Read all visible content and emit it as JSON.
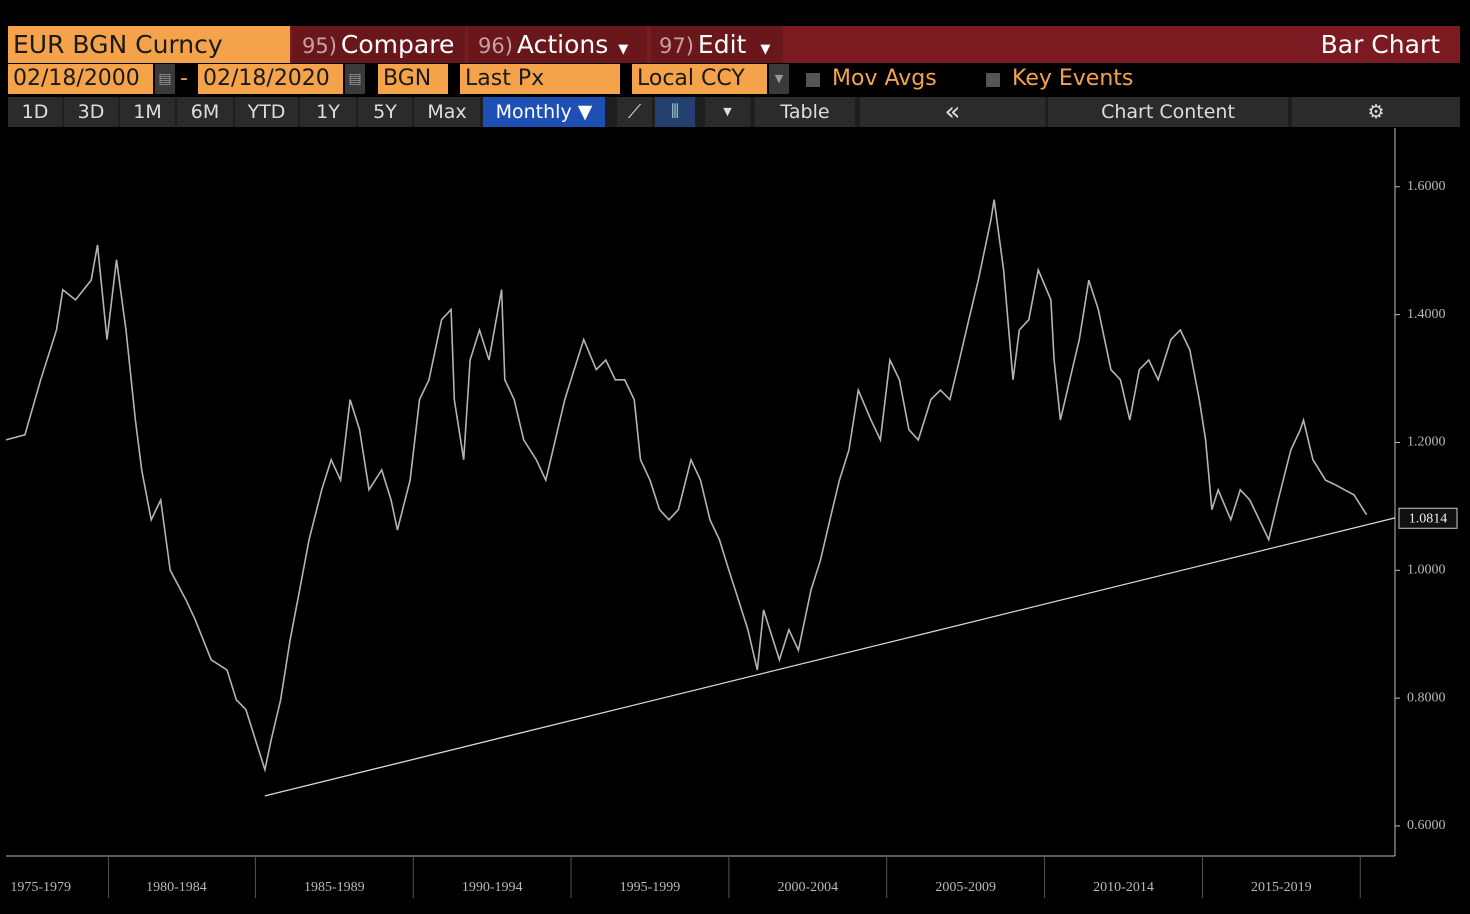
{
  "header": {
    "security": "EUR BGN Curncy",
    "buttons": [
      {
        "number": "95)",
        "label": "Compare"
      },
      {
        "number": "96)",
        "label": "Actions"
      },
      {
        "number": "97)",
        "label": "Edit"
      }
    ],
    "title": "Bar Chart"
  },
  "controls": {
    "start_date": "02/18/2000",
    "separator": "-",
    "end_date": "02/18/2020",
    "currency": "BGN",
    "field": "Last Px",
    "currency_mode": "Local CCY",
    "moving_averages": "Mov Avgs",
    "key_events": "Key Events"
  },
  "range_bar": {
    "periods": [
      "1D",
      "3D",
      "1M",
      "6M",
      "YTD",
      "1Y",
      "5Y",
      "Max"
    ],
    "frequency": "Monthly ▼",
    "table": "Table",
    "collapse": "«",
    "chart_content": "Chart Content"
  },
  "chart_data": {
    "type": "line",
    "series": [
      {
        "color": "#b4b4b4",
        "x": [
          1977.1,
          1977.7,
          1978.2,
          1978.7,
          1978.9,
          1979.3,
          1979.8,
          1980.0,
          1980.3,
          1980.6,
          1980.9,
          1981.2,
          1981.4,
          1981.7,
          1982.0,
          1982.3,
          1982.8,
          1983.1,
          1983.6,
          1984.1,
          1984.4,
          1984.7,
          1985.0,
          1985.3,
          1985.5,
          1985.8,
          1986.1,
          1986.4,
          1986.7,
          1987.1,
          1987.4,
          1987.7,
          1988.0,
          1988.3,
          1988.6,
          1989.0,
          1989.3,
          1989.5,
          1989.9,
          1990.2,
          1990.5,
          1990.9,
          1991.2,
          1991.3,
          1991.6,
          1991.8,
          1992.1,
          1992.4,
          1992.8,
          1992.9,
          1993.2,
          1993.5,
          1993.9,
          1994.2,
          1994.5,
          1994.8,
          1995.1,
          1995.4,
          1995.8,
          1996.1,
          1996.4,
          1996.7,
          1997.0,
          1997.2,
          1997.5,
          1997.8,
          1998.1,
          1998.4,
          1998.8,
          1999.1,
          1999.4,
          1999.7,
          2000.0,
          2000.3,
          2000.6,
          2000.9,
          2001.1,
          2001.4,
          2001.6,
          2001.9,
          2002.2,
          2002.6,
          2002.9,
          2003.2,
          2003.5,
          2003.8,
          2004.1,
          2004.5,
          2004.8,
          2005.1,
          2005.4,
          2005.7,
          2006.0,
          2006.4,
          2006.7,
          2007.0,
          2007.3,
          2007.6,
          2007.9,
          2008.3,
          2008.4,
          2008.7,
          2009.0,
          2009.2,
          2009.5,
          2009.8,
          2010.2,
          2010.3,
          2010.5,
          2010.8,
          2011.1,
          2011.4,
          2011.7,
          2012.1,
          2012.4,
          2012.7,
          2013.0,
          2013.3,
          2013.6,
          2014.0,
          2014.3,
          2014.6,
          2014.9,
          2015.1,
          2015.3,
          2015.5,
          2015.9,
          2016.2,
          2016.5,
          2016.8,
          2017.1,
          2017.4,
          2017.8,
          2018.1,
          2018.2,
          2018.5,
          2018.9,
          2019.2,
          2019.5,
          2019.8,
          2020.2
        ],
        "values": [
          1.204,
          1.212,
          1.298,
          1.376,
          1.439,
          1.423,
          1.454,
          1.509,
          1.361,
          1.486,
          1.376,
          1.235,
          1.157,
          1.079,
          1.11,
          1.0,
          0.954,
          0.922,
          0.86,
          0.844,
          0.797,
          0.782,
          0.735,
          0.688,
          0.735,
          0.797,
          0.891,
          0.969,
          1.048,
          1.126,
          1.173,
          1.141,
          1.267,
          1.22,
          1.126,
          1.157,
          1.11,
          1.063,
          1.141,
          1.267,
          1.298,
          1.392,
          1.408,
          1.267,
          1.173,
          1.329,
          1.376,
          1.329,
          1.439,
          1.298,
          1.267,
          1.204,
          1.173,
          1.141,
          1.204,
          1.267,
          1.314,
          1.361,
          1.314,
          1.329,
          1.298,
          1.298,
          1.267,
          1.173,
          1.141,
          1.095,
          1.079,
          1.095,
          1.173,
          1.141,
          1.079,
          1.048,
          1.0,
          0.954,
          0.907,
          0.844,
          0.938,
          0.891,
          0.86,
          0.907,
          0.875,
          0.969,
          1.016,
          1.079,
          1.141,
          1.188,
          1.282,
          1.235,
          1.204,
          1.329,
          1.298,
          1.22,
          1.204,
          1.267,
          1.282,
          1.267,
          1.329,
          1.392,
          1.454,
          1.548,
          1.58,
          1.47,
          1.298,
          1.376,
          1.392,
          1.47,
          1.423,
          1.329,
          1.235,
          1.298,
          1.361,
          1.454,
          1.408,
          1.314,
          1.298,
          1.235,
          1.314,
          1.329,
          1.298,
          1.361,
          1.376,
          1.345,
          1.267,
          1.204,
          1.095,
          1.126,
          1.079,
          1.126,
          1.11,
          1.079,
          1.048,
          1.11,
          1.188,
          1.22,
          1.235,
          1.173,
          1.141,
          1.134,
          1.126,
          1.118,
          1.087
        ]
      }
    ],
    "trendline": {
      "color": "#d8d8d8",
      "x": [
        1985.3,
        2021.1
      ],
      "values": [
        0.647,
        1.082
      ]
    },
    "last_price": 1.0814,
    "xlim": [
      1977.1,
      2021.1
    ],
    "xticks": [
      {
        "value": 1978.2,
        "label": "1975-1979"
      },
      {
        "value": 1982.5,
        "label": "1980-1984"
      },
      {
        "value": 1987.5,
        "label": "1985-1989"
      },
      {
        "value": 1992.5,
        "label": "1990-1994"
      },
      {
        "value": 1997.5,
        "label": "1995-1999"
      },
      {
        "value": 2002.5,
        "label": "2000-2004"
      },
      {
        "value": 2007.5,
        "label": "2005-2009"
      },
      {
        "value": 2012.5,
        "label": "2010-2014"
      },
      {
        "value": 2017.5,
        "label": "2015-2019"
      }
    ],
    "ylim": [
      0.553,
      1.692
    ],
    "yticks": [
      {
        "value": 0.6,
        "label": "0.6000"
      },
      {
        "value": 0.8,
        "label": "0.8000"
      },
      {
        "value": 1.0,
        "label": "1.0000"
      },
      {
        "value": 1.2,
        "label": "1.2000"
      },
      {
        "value": 1.4,
        "label": "1.4000"
      },
      {
        "value": 1.6,
        "label": "1.6000"
      }
    ]
  }
}
